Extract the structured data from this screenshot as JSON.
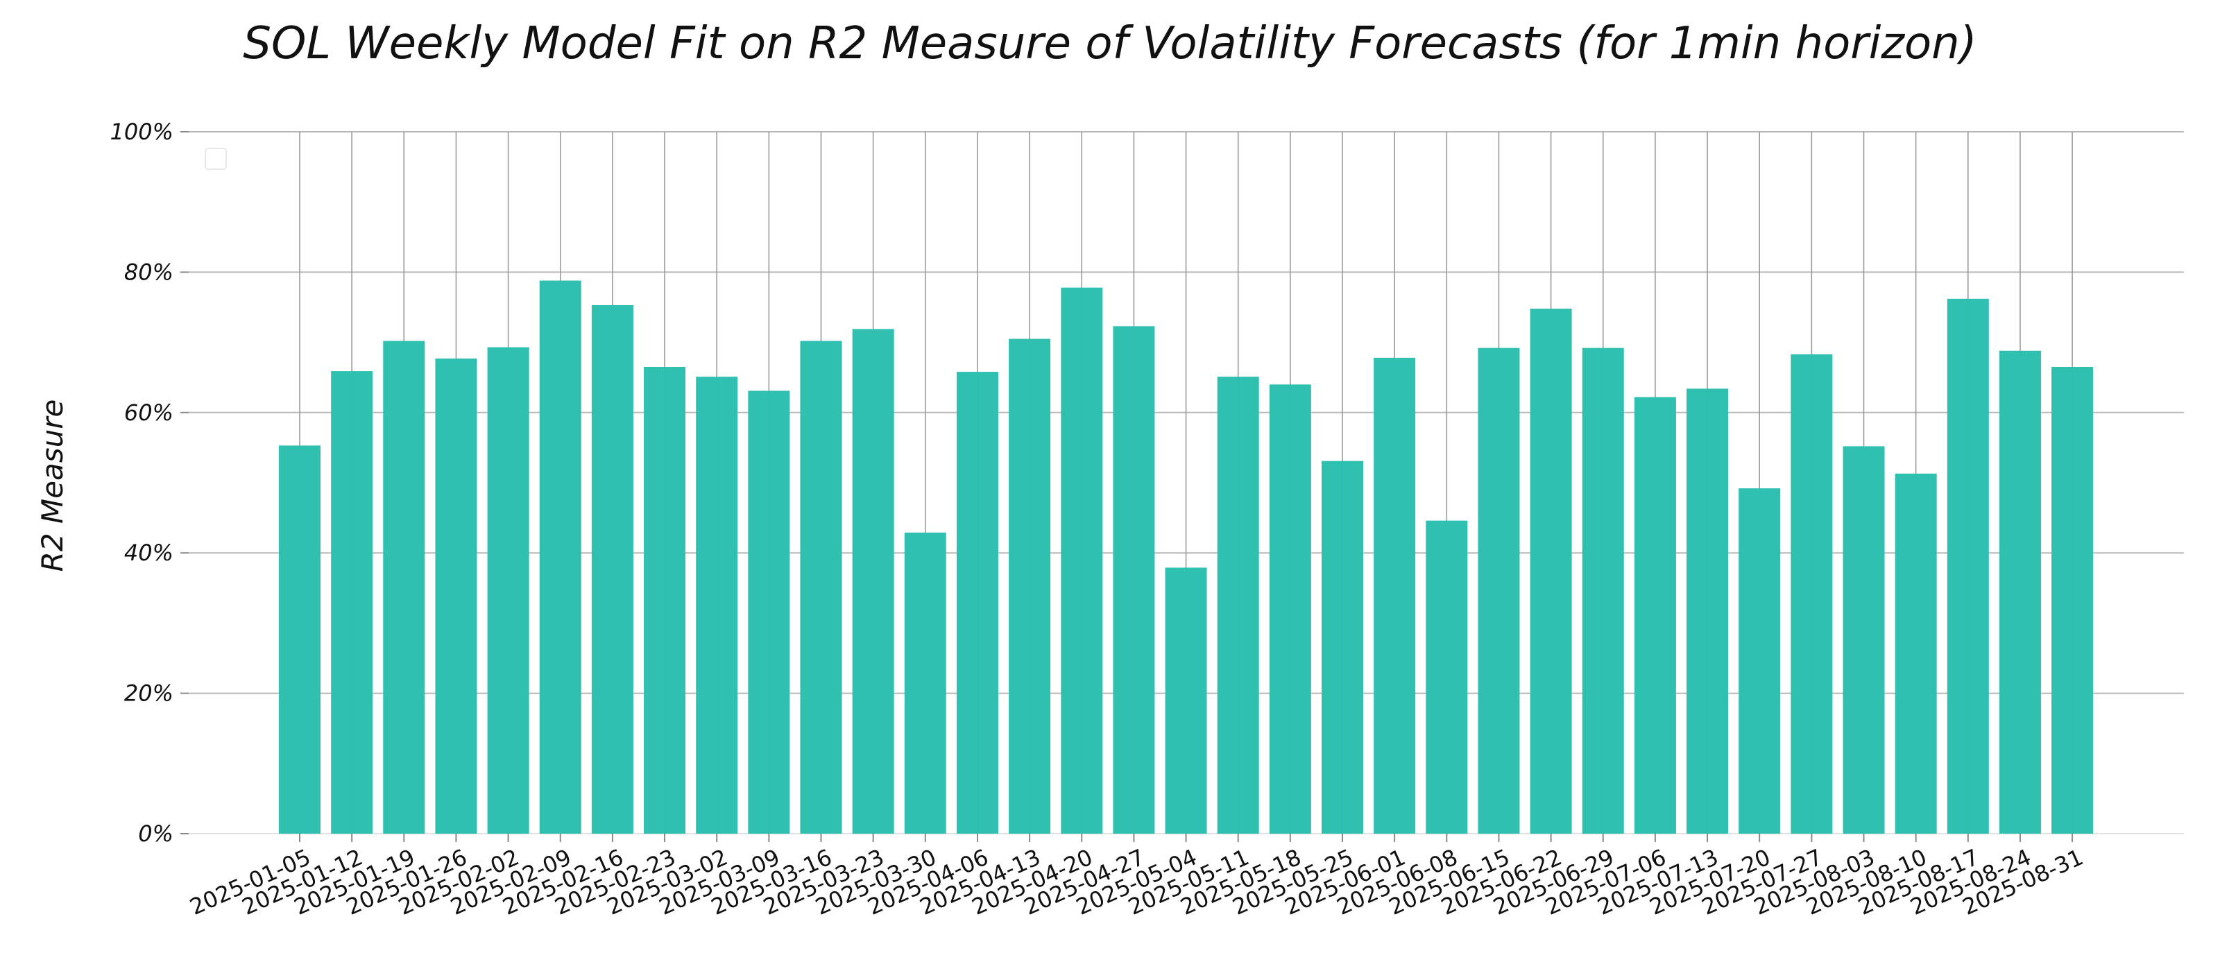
{
  "chart_data": {
    "type": "bar",
    "title": "SOL Weekly Model Fit on R2 Measure of Volatility Forecasts (for 1min horizon)",
    "xlabel": "",
    "ylabel": "R2 Measure",
    "ylim": [
      0,
      100
    ],
    "y_ticks": [
      0,
      20,
      40,
      60,
      80,
      100
    ],
    "y_tick_labels": [
      "0%",
      "20%",
      "40%",
      "60%",
      "80%",
      "100%"
    ],
    "grid": true,
    "legend": "top-left, empty",
    "bar_color": "#2bbfae",
    "categories": [
      "2025-01-05",
      "2025-01-12",
      "2025-01-19",
      "2025-01-26",
      "2025-02-02",
      "2025-02-09",
      "2025-02-16",
      "2025-02-23",
      "2025-03-02",
      "2025-03-09",
      "2025-03-16",
      "2025-03-23",
      "2025-03-30",
      "2025-04-06",
      "2025-04-13",
      "2025-04-20",
      "2025-04-27",
      "2025-05-04",
      "2025-05-11",
      "2025-05-18",
      "2025-05-25",
      "2025-06-01",
      "2025-06-08",
      "2025-06-15",
      "2025-06-22",
      "2025-06-29",
      "2025-07-06",
      "2025-07-13",
      "2025-07-20",
      "2025-07-27",
      "2025-08-03",
      "2025-08-10",
      "2025-08-17",
      "2025-08-24",
      "2025-08-31"
    ],
    "values": [
      55.3,
      65.9,
      70.2,
      67.7,
      69.3,
      78.8,
      75.3,
      66.5,
      65.1,
      63.1,
      70.2,
      71.9,
      42.9,
      65.8,
      70.5,
      77.8,
      72.3,
      37.9,
      65.1,
      64.0,
      53.1,
      67.8,
      44.6,
      69.2,
      74.8,
      69.2,
      62.2,
      63.4,
      49.2,
      68.3,
      55.2,
      51.3,
      76.2,
      68.8,
      66.5
    ]
  }
}
